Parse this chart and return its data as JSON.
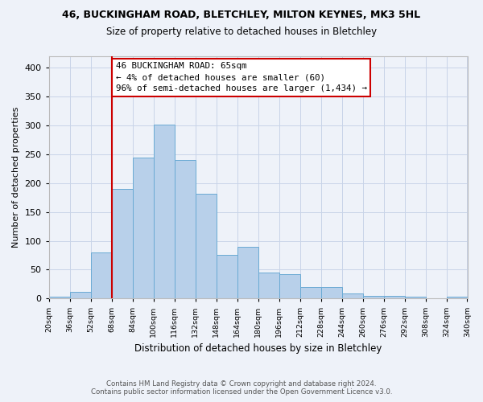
{
  "title": "46, BUCKINGHAM ROAD, BLETCHLEY, MILTON KEYNES, MK3 5HL",
  "subtitle": "Size of property relative to detached houses in Bletchley",
  "xlabel": "Distribution of detached houses by size in Bletchley",
  "ylabel": "Number of detached properties",
  "footer_line1": "Contains HM Land Registry data © Crown copyright and database right 2024.",
  "footer_line2": "Contains public sector information licensed under the Open Government Licence v3.0.",
  "bar_color": "#b8d0ea",
  "bar_edge_color": "#6aaad4",
  "grid_color": "#c8d4e8",
  "annotation_text": "46 BUCKINGHAM ROAD: 65sqm\n← 4% of detached houses are smaller (60)\n96% of semi-detached houses are larger (1,434) →",
  "annotation_box_color": "#ffffff",
  "annotation_box_edge_color": "#cc0000",
  "vline_x": 68,
  "vline_color": "#cc0000",
  "bins_left": [
    20,
    36,
    52,
    68,
    84,
    100,
    116,
    132,
    148,
    164,
    180,
    196,
    212,
    228,
    244,
    260,
    276,
    292,
    308,
    324
  ],
  "bin_width": 16,
  "bar_heights": [
    3,
    12,
    80,
    190,
    245,
    302,
    240,
    182,
    75,
    90,
    45,
    42,
    20,
    20,
    9,
    5,
    5,
    3,
    0,
    3
  ],
  "xlim": [
    20,
    340
  ],
  "ylim": [
    0,
    420
  ],
  "yticks": [
    0,
    50,
    100,
    150,
    200,
    250,
    300,
    350,
    400
  ],
  "xtick_labels": [
    "20sqm",
    "36sqm",
    "52sqm",
    "68sqm",
    "84sqm",
    "100sqm",
    "116sqm",
    "132sqm",
    "148sqm",
    "164sqm",
    "180sqm",
    "196sqm",
    "212sqm",
    "228sqm",
    "244sqm",
    "260sqm",
    "276sqm",
    "292sqm",
    "308sqm",
    "324sqm",
    "340sqm"
  ],
  "xtick_positions": [
    20,
    36,
    52,
    68,
    84,
    100,
    116,
    132,
    148,
    164,
    180,
    196,
    212,
    228,
    244,
    260,
    276,
    292,
    308,
    324,
    340
  ],
  "background_color": "#eef2f9"
}
